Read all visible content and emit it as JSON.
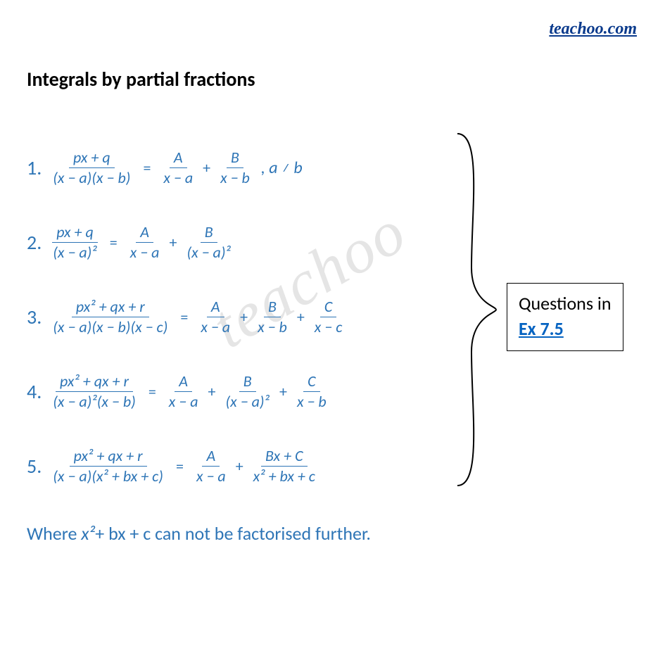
{
  "logo": "teachoo.com",
  "heading": "Integrals by partial fractions",
  "colors": {
    "formula": "#2e75b6",
    "heading": "#000000",
    "logo": "#0a3a8c",
    "link": "#0563c1",
    "background": "#ffffff"
  },
  "formulas": [
    {
      "n": "1.",
      "lhs_top": "px + q",
      "lhs_bot": "(x − a)(x − b)",
      "rhs": [
        {
          "top": "A",
          "bot": "x − a"
        },
        {
          "top": "B",
          "bot": "x − b"
        }
      ],
      "cond": ", a ≠ b"
    },
    {
      "n": "2.",
      "lhs_top": "px + q",
      "lhs_bot": "(x − a)²",
      "rhs": [
        {
          "top": "A",
          "bot": "x − a"
        },
        {
          "top": "B",
          "bot": "(x − a)²"
        }
      ],
      "cond": ""
    },
    {
      "n": "3.",
      "lhs_top": "px² + qx + r",
      "lhs_bot": "(x − a)(x − b)(x − c)",
      "rhs": [
        {
          "top": "A",
          "bot": "x − a"
        },
        {
          "top": "B",
          "bot": "x − b"
        },
        {
          "top": "C",
          "bot": "x − c"
        }
      ],
      "cond": ""
    },
    {
      "n": "4.",
      "lhs_top": "px² + qx + r",
      "lhs_bot": "(x − a)²(x − b)",
      "rhs": [
        {
          "top": "A",
          "bot": "x − a"
        },
        {
          "top": "B",
          "bot": "(x − a)²"
        },
        {
          "top": "C",
          "bot": "x − b"
        }
      ],
      "cond": ""
    },
    {
      "n": "5.",
      "lhs_top": "px² + qx + r",
      "lhs_bot": "(x − a)(x² + bx + c)",
      "rhs": [
        {
          "top": "A",
          "bot": "x − a"
        },
        {
          "top": "Bx + C",
          "bot": "x² + bx + c"
        }
      ],
      "cond": ""
    }
  ],
  "footnote_pre": "Where ",
  "footnote_mid": "x²",
  "footnote_post": "+ bx + c can not be factorised further.",
  "callout_line1": "Questions in",
  "callout_link": "Ex 7.5",
  "watermark": "teachoo"
}
